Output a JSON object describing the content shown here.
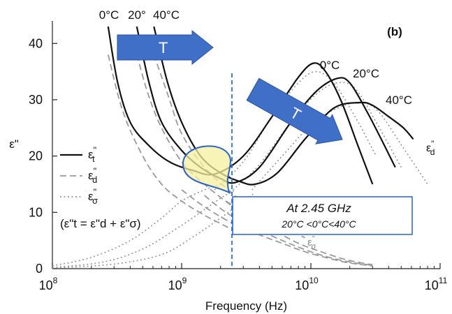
{
  "chart_data": {
    "type": "line",
    "panel_label": "(b)",
    "xlabel": "Frequency (Hz)",
    "ylabel": "ε\"",
    "x_scale": "log",
    "xlim": [
      100000000,
      100000000000
    ],
    "ylim": [
      0,
      44
    ],
    "x_ticks": [
      {
        "value": 100000000,
        "base": "10",
        "exp": "8"
      },
      {
        "value": 1000000000,
        "base": "10",
        "exp": "9"
      },
      {
        "value": 10000000000,
        "base": "10",
        "exp": "10"
      },
      {
        "value": 100000000000,
        "base": "10",
        "exp": "11"
      }
    ],
    "y_ticks": [
      0,
      10,
      20,
      30,
      40
    ],
    "temperature_labels_top": [
      "0°C",
      "20°",
      "40°C"
    ],
    "peak_labels": [
      "0°C",
      "20°C",
      "40°C"
    ],
    "arrow_label": "T",
    "curve_label_eps_d": "ε\"d",
    "curve_label_eps_sigma": "ε\"σ",
    "legend": [
      {
        "label": "ε\"t",
        "style": "solid"
      },
      {
        "label": "ε\"d",
        "style": "dashed"
      },
      {
        "label": "ε\"σ",
        "style": "dotted"
      }
    ],
    "legend_equation": "(ε\"t = ε\"d + ε\"σ)",
    "annotation": {
      "frequency": 2450000000,
      "line1": "At 2.45 GHz",
      "line2": "20°C <0°C<40°C"
    },
    "series": [
      {
        "name": "ε\"t 0°C",
        "style": "solid",
        "x": [
          270000000,
          320000000,
          400000000,
          550000000,
          800000000,
          1200000000,
          1800000000,
          3000000000,
          5000000000,
          8000000000,
          10500000000,
          13000000000,
          17000000000,
          23000000000,
          30000000000
        ],
        "y": [
          43,
          33,
          26,
          22,
          19,
          17.5,
          16.8,
          20,
          27,
          34,
          36.5,
          35,
          30,
          22,
          15
        ]
      },
      {
        "name": "ε\"t 20°C",
        "style": "solid",
        "x": [
          450000000,
          560000000,
          700000000,
          1000000000,
          1400000000,
          2000000000,
          2600000000,
          4000000000,
          7000000000,
          11000000000,
          16000000000,
          20000000000,
          27000000000,
          35000000000,
          45000000000
        ],
        "y": [
          43,
          33,
          26,
          21,
          18,
          16,
          15.3,
          18,
          26,
          31.5,
          33.8,
          33,
          28,
          23,
          18
        ]
      },
      {
        "name": "ε\"t 40°C",
        "style": "solid",
        "x": [
          610000000,
          780000000,
          1000000000,
          1400000000,
          2000000000,
          2800000000,
          3700000000,
          5500000000,
          9000000000,
          15000000000,
          24000000000,
          30000000000,
          40000000000,
          52000000000,
          62000000000
        ],
        "y": [
          43,
          33,
          26,
          20,
          17,
          15.5,
          15,
          17,
          23,
          28.5,
          29.5,
          29,
          27,
          25,
          23
        ]
      },
      {
        "name": "ε\"d 0°C",
        "style": "dashed",
        "x": [
          270000000,
          350000000,
          500000000,
          700000000,
          1000000000,
          1500000000,
          2000000000,
          3000000000
        ],
        "y": [
          38,
          28,
          20,
          15,
          12,
          9.5,
          8,
          6
        ]
      },
      {
        "name": "ε\"d 20°C",
        "style": "dashed",
        "x": [
          450000000,
          550000000,
          700000000,
          1000000000,
          1500000000,
          2500000000,
          4000000000,
          6000000000
        ],
        "y": [
          38,
          31,
          25,
          19,
          15,
          11,
          8,
          6
        ]
      },
      {
        "name": "ε\"d 40°C",
        "style": "dashed",
        "x": [
          610000000,
          780000000,
          1000000000,
          1500000000,
          2300000000,
          3500000000,
          6000000000,
          9000000000
        ],
        "y": [
          38,
          31,
          24,
          18,
          14,
          10.5,
          7.5,
          5.5
        ]
      },
      {
        "name": "ε\"d 0°C high",
        "style": "dotted",
        "x": [
          1800000000,
          3000000000,
          5000000000,
          8000000000,
          11000000000,
          15000000000,
          22000000000,
          32000000000
        ],
        "y": [
          14,
          19,
          27,
          33,
          35,
          33,
          27,
          20
        ]
      },
      {
        "name": "ε\"d 20°C high",
        "style": "dotted",
        "x": [
          2500000000,
          4000000000,
          7000000000,
          11000000000,
          16000000000,
          22000000000,
          32000000000,
          50000000000
        ],
        "y": [
          14,
          18.5,
          26,
          31,
          33,
          32,
          26,
          18
        ]
      },
      {
        "name": "ε\"d 40°C high",
        "style": "dotted",
        "x": [
          3500000000,
          6000000000,
          10000000000,
          16000000000,
          24000000000,
          33000000000,
          50000000000,
          80000000000
        ],
        "y": [
          14,
          20,
          25.5,
          28.5,
          29.5,
          28,
          22,
          15
        ]
      },
      {
        "name": "ε\"σ 0°C",
        "style": "dashed",
        "x": [
          1000000000,
          1500000000,
          2500000000,
          4000000000,
          6000000000,
          9000000000,
          14000000000,
          20000000000,
          30000000000
        ],
        "y": [
          14,
          11,
          8,
          6,
          4.5,
          3,
          1.8,
          1,
          0.5
        ]
      },
      {
        "name": "ε\"σ 20°C",
        "style": "dashed",
        "x": [
          1500000000,
          2200000000,
          3500000000,
          6000000000,
          10000000000,
          15000000000,
          22000000000,
          30000000000
        ],
        "y": [
          13,
          10,
          7.5,
          5,
          3,
          1.8,
          1,
          0.6
        ]
      },
      {
        "name": "ε\"σ 40°C",
        "style": "dashed",
        "x": [
          2200000000,
          3300000000,
          5000000000,
          8000000000,
          12000000000,
          18000000000,
          25000000000,
          30000000000
        ],
        "y": [
          12,
          9.5,
          7,
          4.5,
          3,
          1.7,
          1,
          0.7
        ]
      },
      {
        "name": "ε\"σ dotted 0°C",
        "style": "dotted",
        "x": [
          100000000,
          200000000,
          400000000,
          700000000,
          1000000000,
          1500000000,
          2000000000
        ],
        "y": [
          0.5,
          2,
          5,
          9,
          12,
          14,
          15
        ]
      },
      {
        "name": "ε\"σ dotted 20°C",
        "style": "dotted",
        "x": [
          100000000,
          250000000,
          500000000,
          900000000,
          1400000000,
          2000000000,
          2600000000
        ],
        "y": [
          0.2,
          1.2,
          3.5,
          7,
          10,
          12.5,
          14
        ]
      },
      {
        "name": "ε\"σ dotted 40°C",
        "style": "dotted",
        "x": [
          100000000,
          300000000,
          700000000,
          1200000000,
          2000000000,
          3000000000,
          3700000000
        ],
        "y": [
          0.1,
          0.8,
          2.5,
          5.5,
          9,
          12,
          13.5
        ]
      }
    ]
  }
}
